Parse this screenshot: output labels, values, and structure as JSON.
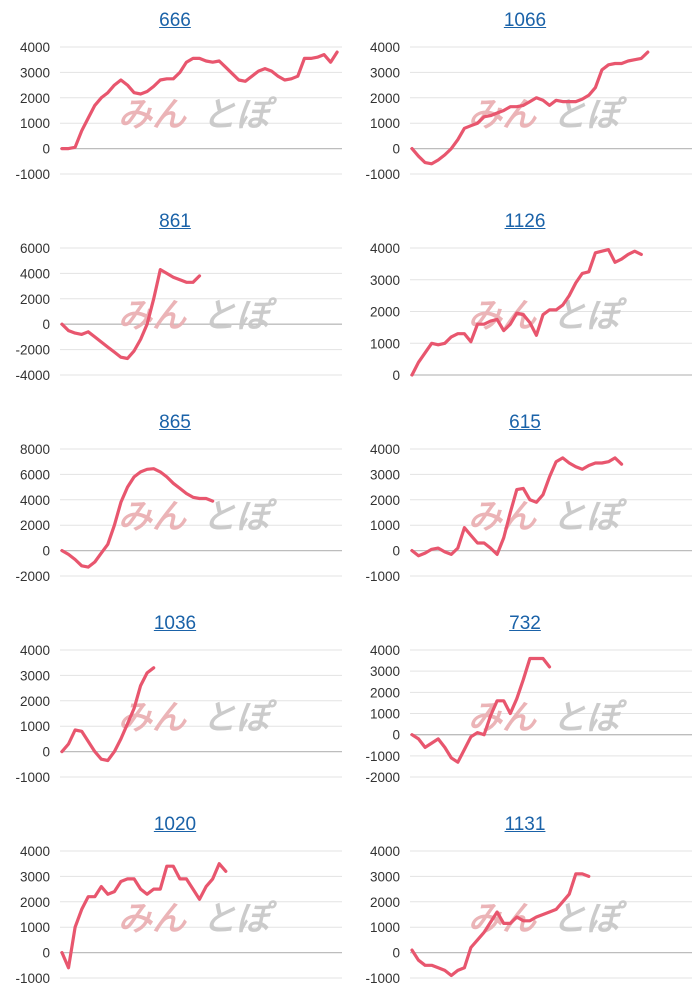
{
  "colors": {
    "line": "#e8566e",
    "grid": "#e3e3e3",
    "zero": "#bdbdbd",
    "title": "#1a62a8",
    "watermark_a": "#eab0b4",
    "watermark_b": "#c9c9c9"
  },
  "watermark": {
    "part_a": "みん",
    "part_b": "とぽ"
  },
  "chart_data": [
    {
      "type": "line",
      "title": "666",
      "yticks": [
        -1000,
        0,
        1000,
        2000,
        3000,
        4000
      ],
      "ylim": [
        -1000,
        4000
      ],
      "grid": true,
      "y": [
        0,
        0,
        50,
        700,
        1200,
        1700,
        2000,
        2200,
        2500,
        2700,
        2500,
        2200,
        2150,
        2250,
        2450,
        2700,
        2750,
        2750,
        3000,
        3400,
        3550,
        3550,
        3450,
        3400,
        3450,
        3200,
        2950,
        2700,
        2650,
        2850,
        3050,
        3150,
        3050,
        2850,
        2700,
        2750,
        2850,
        3550,
        3550,
        3600,
        3700,
        3400,
        3800
      ]
    },
    {
      "type": "line",
      "title": "1066",
      "yticks": [
        -1000,
        0,
        1000,
        2000,
        3000,
        4000
      ],
      "ylim": [
        -1000,
        4000
      ],
      "grid": true,
      "y": [
        0,
        -300,
        -550,
        -600,
        -450,
        -250,
        0,
        350,
        800,
        900,
        1000,
        1250,
        1300,
        1400,
        1500,
        1650,
        1650,
        1700,
        1850,
        2000,
        1900,
        1700,
        1900,
        1850,
        1850,
        1850,
        1950,
        2100,
        2400,
        3100,
        3300,
        3350,
        3350,
        3450,
        3500,
        3550,
        3800
      ]
    },
    {
      "type": "line",
      "title": "861",
      "yticks": [
        -4000,
        -2000,
        0,
        2000,
        4000,
        6000
      ],
      "ylim": [
        -4000,
        6000
      ],
      "grid": true,
      "y": [
        0,
        -500,
        -700,
        -800,
        -600,
        -1000,
        -1400,
        -1800,
        -2200,
        -2600,
        -2700,
        -2100,
        -1200,
        0,
        2000,
        4300,
        4000,
        3700,
        3500,
        3300,
        3300,
        3800
      ]
    },
    {
      "type": "line",
      "title": "1126",
      "yticks": [
        0,
        1000,
        2000,
        3000,
        4000
      ],
      "ylim": [
        0,
        4000
      ],
      "grid": true,
      "y": [
        0,
        400,
        700,
        1000,
        950,
        1000,
        1200,
        1300,
        1300,
        1050,
        1600,
        1600,
        1700,
        1750,
        1400,
        1600,
        1950,
        1900,
        1650,
        1250,
        1900,
        2050,
        2050,
        2200,
        2500,
        2900,
        3200,
        3250,
        3850,
        3900,
        3950,
        3550,
        3650,
        3800,
        3900,
        3800
      ]
    },
    {
      "type": "line",
      "title": "865",
      "yticks": [
        -2000,
        0,
        2000,
        4000,
        6000,
        8000
      ],
      "ylim": [
        -2000,
        8000
      ],
      "grid": true,
      "y": [
        0,
        -300,
        -700,
        -1200,
        -1300,
        -900,
        -200,
        500,
        2000,
        3800,
        5000,
        5800,
        6200,
        6400,
        6450,
        6200,
        5800,
        5300,
        4900,
        4500,
        4200,
        4100,
        4100,
        3900
      ]
    },
    {
      "type": "line",
      "title": "615",
      "yticks": [
        -1000,
        0,
        1000,
        2000,
        3000,
        4000
      ],
      "ylim": [
        -1000,
        4000
      ],
      "grid": true,
      "y": [
        0,
        -200,
        -100,
        50,
        100,
        -50,
        -150,
        100,
        900,
        600,
        300,
        300,
        100,
        -150,
        500,
        1500,
        2400,
        2450,
        2000,
        1900,
        2200,
        2900,
        3500,
        3650,
        3450,
        3300,
        3200,
        3350,
        3450,
        3450,
        3500,
        3650,
        3400
      ]
    },
    {
      "type": "line",
      "title": "1036",
      "yticks": [
        -1000,
        0,
        1000,
        2000,
        3000,
        4000
      ],
      "ylim": [
        -1000,
        4000
      ],
      "grid": true,
      "y": [
        0,
        300,
        850,
        800,
        400,
        0,
        -300,
        -350,
        0,
        500,
        1100,
        1700,
        2600,
        3100,
        3300
      ]
    },
    {
      "type": "line",
      "title": "732",
      "yticks": [
        -2000,
        -1000,
        0,
        1000,
        2000,
        3000,
        4000
      ],
      "ylim": [
        -2000,
        4000
      ],
      "grid": true,
      "y": [
        0,
        -200,
        -600,
        -400,
        -200,
        -600,
        -1100,
        -1300,
        -700,
        -100,
        100,
        0,
        900,
        1600,
        1600,
        1000,
        1700,
        2600,
        3600,
        3600,
        3600,
        3200
      ]
    },
    {
      "type": "line",
      "title": "1020",
      "yticks": [
        -1000,
        0,
        1000,
        2000,
        3000,
        4000
      ],
      "ylim": [
        -1000,
        4000
      ],
      "grid": true,
      "y": [
        0,
        -600,
        1000,
        1700,
        2200,
        2200,
        2600,
        2300,
        2400,
        2800,
        2900,
        2900,
        2500,
        2300,
        2500,
        2500,
        3400,
        3400,
        2900,
        2900,
        2500,
        2100,
        2600,
        2900,
        3500,
        3200
      ]
    },
    {
      "type": "line",
      "title": "1131",
      "yticks": [
        -1000,
        0,
        1000,
        2000,
        3000,
        4000
      ],
      "ylim": [
        -1000,
        4000
      ],
      "grid": true,
      "y": [
        100,
        -300,
        -500,
        -500,
        -600,
        -700,
        -900,
        -700,
        -600,
        200,
        500,
        800,
        1200,
        1600,
        1150,
        1150,
        1400,
        1250,
        1250,
        1400,
        1500,
        1600,
        1700,
        2000,
        2300,
        3100,
        3100,
        3000
      ]
    }
  ]
}
